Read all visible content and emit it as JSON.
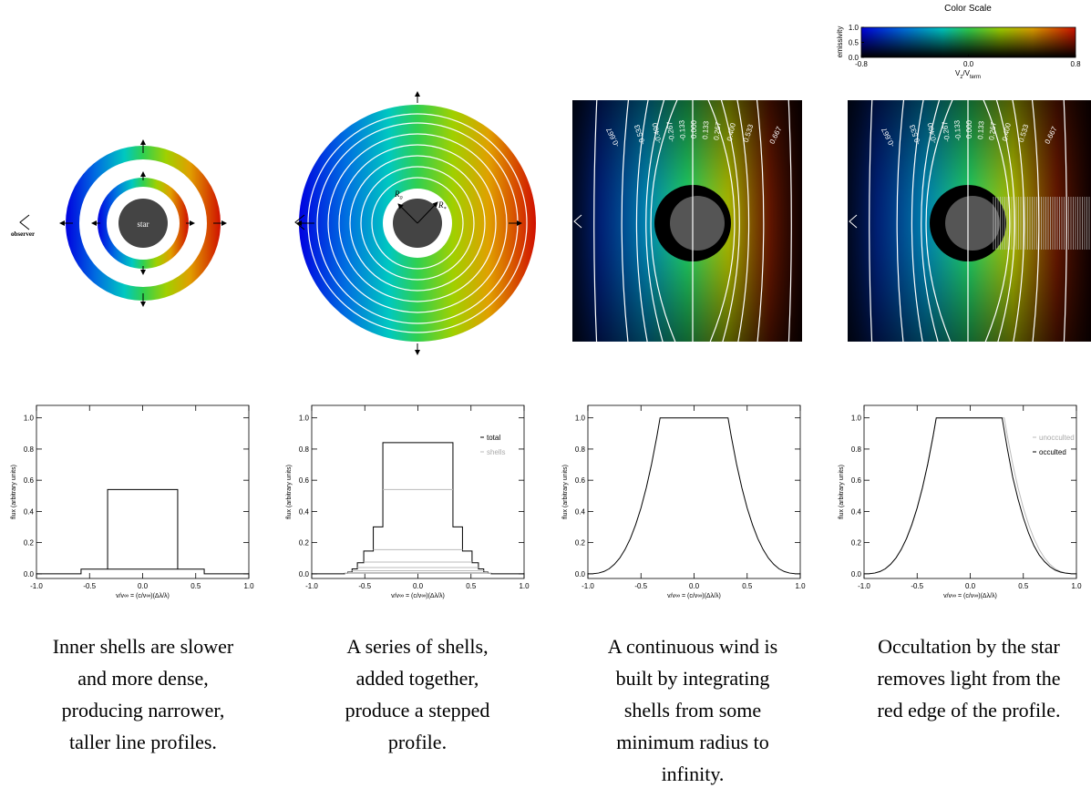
{
  "color_scale": {
    "title": "Color Scale",
    "ylabel": "emissivity",
    "xlabel_parts": [
      "V",
      "z",
      "/V",
      "term"
    ],
    "xlim": [
      -0.8,
      0.8
    ],
    "ylim": [
      0,
      1
    ],
    "xticks": [
      -0.8,
      {
        "value": 0,
        "label": "0.0"
      },
      0.8
    ],
    "yticks": [
      {
        "value": 0,
        "label": "0.0"
      },
      0.5,
      {
        "value": 1,
        "label": "1.0"
      }
    ]
  },
  "diagrams": {
    "star": "star",
    "observer": "observer",
    "r0": [
      "R",
      "0"
    ],
    "rstar": [
      "R",
      "*"
    ],
    "contour_labels": [
      "-0.667",
      "-0.533",
      "-0.400",
      "-0.267",
      "-0.133",
      "0.000",
      "0.133",
      "0.267",
      "0.400",
      "0.533",
      "0.667"
    ]
  },
  "chart_data": [
    {
      "type": "line",
      "xlabel": "v/v∞ = (c/v∞)(Δλ/λ)",
      "ylabel": "flux (arbitrary units)",
      "xlim": [
        -1,
        1
      ],
      "ylim": [
        -0.03,
        1.08
      ],
      "xticks": [
        {
          "value": -1,
          "label": "-1.0"
        },
        -0.5,
        {
          "value": 0,
          "label": "0.0"
        },
        0.5,
        {
          "value": 1,
          "label": "1.0"
        }
      ],
      "yticks": [
        {
          "value": 0,
          "label": "0.0"
        },
        0.2,
        0.4,
        0.6,
        0.8,
        {
          "value": 1,
          "label": "1.0"
        }
      ],
      "series": [
        {
          "color": "#000000",
          "x": [
            -1,
            -0.58,
            -0.58,
            0.58,
            0.58,
            1
          ],
          "values": [
            0,
            0,
            0.03,
            0.03,
            0,
            0
          ]
        },
        {
          "color": "#000000",
          "x": [
            -0.33,
            -0.33,
            0.33,
            0.33
          ],
          "values": [
            0.03,
            0.54,
            0.54,
            0.03
          ]
        }
      ]
    },
    {
      "type": "line",
      "xlabel": "v/v∞ = (c/v∞)(Δλ/λ)",
      "ylabel": "flux (arbitrary units)",
      "xlim": [
        -1,
        1
      ],
      "ylim": [
        -0.03,
        1.08
      ],
      "xticks": [
        {
          "value": -1,
          "label": "-1.0"
        },
        -0.5,
        {
          "value": 0,
          "label": "0.0"
        },
        0.5,
        {
          "value": 1,
          "label": "1.0"
        }
      ],
      "yticks": [
        {
          "value": 0,
          "label": "0.0"
        },
        0.2,
        0.4,
        0.6,
        0.8,
        {
          "value": 1,
          "label": "1.0"
        }
      ],
      "legend": "upper right",
      "series": [
        {
          "name": "total",
          "color": "#000000",
          "x": [
            -1,
            -0.69,
            -0.69,
            -0.66,
            -0.66,
            -0.62,
            -0.62,
            -0.57,
            -0.57,
            -0.51,
            -0.51,
            -0.42,
            -0.42,
            -0.33,
            -0.33,
            0.33,
            0.33,
            0.42,
            0.42,
            0.51,
            0.51,
            0.57,
            0.57,
            0.62,
            0.62,
            0.66,
            0.66,
            0.69,
            0.69,
            1
          ],
          "values": [
            0,
            0,
            0.003,
            0.003,
            0.011,
            0.011,
            0.031,
            0.031,
            0.071,
            0.071,
            0.146,
            0.146,
            0.301,
            0.301,
            0.841,
            0.841,
            0.301,
            0.301,
            0.146,
            0.146,
            0.071,
            0.071,
            0.031,
            0.031,
            0.011,
            0.011,
            0.003,
            0.003,
            0,
            0
          ]
        },
        {
          "name": "shells",
          "color": "#bbbbbb",
          "x": [
            -0.33,
            0.33,
            null,
            -0.42,
            0.42,
            null,
            -0.51,
            0.51,
            null,
            -0.57,
            0.57,
            null,
            -0.62,
            0.62,
            null,
            -0.66,
            0.66,
            null,
            -0.69,
            0.69
          ],
          "values": [
            0.54,
            0.54,
            null,
            0.155,
            0.155,
            null,
            0.075,
            0.075,
            null,
            0.04,
            0.04,
            null,
            0.02,
            0.02,
            null,
            0.008,
            0.008,
            null,
            0.003,
            0.003
          ]
        }
      ]
    },
    {
      "type": "line",
      "xlabel": "v/v∞ = (c/v∞)(Δλ/λ)",
      "ylabel": "flux (arbitrary units)",
      "xlim": [
        -1,
        1
      ],
      "ylim": [
        -0.03,
        1.08
      ],
      "xticks": [
        {
          "value": -1,
          "label": "-1.0"
        },
        -0.5,
        {
          "value": 0,
          "label": "0.0"
        },
        0.5,
        {
          "value": 1,
          "label": "1.0"
        }
      ],
      "yticks": [
        {
          "value": 0,
          "label": "0.0"
        },
        0.2,
        0.4,
        0.6,
        0.8,
        {
          "value": 1,
          "label": "1.0"
        }
      ],
      "series": [
        {
          "color": "#000000",
          "x": [
            -1,
            -0.95,
            -0.9,
            -0.85,
            -0.8,
            -0.75,
            -0.7,
            -0.65,
            -0.6,
            -0.55,
            -0.5,
            -0.45,
            -0.4,
            -0.35,
            -0.32,
            0.32,
            0.35,
            0.4,
            0.45,
            0.5,
            0.55,
            0.6,
            0.65,
            0.7,
            0.75,
            0.8,
            0.85,
            0.9,
            0.95,
            1
          ],
          "values": [
            0,
            0.0007,
            0.0047,
            0.0145,
            0.032,
            0.061,
            0.101,
            0.156,
            0.226,
            0.315,
            0.422,
            0.552,
            0.704,
            0.882,
            1,
            1,
            0.882,
            0.704,
            0.552,
            0.422,
            0.315,
            0.226,
            0.156,
            0.101,
            0.061,
            0.032,
            0.0145,
            0.0047,
            0.0007,
            0
          ]
        }
      ]
    },
    {
      "type": "line",
      "xlabel": "v/v∞ = (c/v∞)(Δλ/λ)",
      "ylabel": "flux (arbitrary units)",
      "xlim": [
        -1,
        1
      ],
      "ylim": [
        -0.03,
        1.08
      ],
      "xticks": [
        {
          "value": -1,
          "label": "-1.0"
        },
        -0.5,
        {
          "value": 0,
          "label": "0.0"
        },
        0.5,
        {
          "value": 1,
          "label": "1.0"
        }
      ],
      "yticks": [
        {
          "value": 0,
          "label": "0.0"
        },
        0.2,
        0.4,
        0.6,
        0.8,
        {
          "value": 1,
          "label": "1.0"
        }
      ],
      "legend": "upper right",
      "series": [
        {
          "name": "unocculted",
          "color": "#bbbbbb",
          "x": [
            -1,
            -0.95,
            -0.9,
            -0.85,
            -0.8,
            -0.75,
            -0.7,
            -0.65,
            -0.6,
            -0.55,
            -0.5,
            -0.45,
            -0.4,
            -0.35,
            -0.32,
            0.32,
            0.35,
            0.4,
            0.45,
            0.5,
            0.55,
            0.6,
            0.65,
            0.7,
            0.75,
            0.8,
            0.85,
            0.9,
            0.95,
            1
          ],
          "values": [
            0,
            0.0007,
            0.0047,
            0.0145,
            0.032,
            0.061,
            0.101,
            0.156,
            0.226,
            0.315,
            0.422,
            0.552,
            0.704,
            0.882,
            1,
            1,
            0.882,
            0.704,
            0.552,
            0.422,
            0.315,
            0.226,
            0.156,
            0.101,
            0.061,
            0.032,
            0.0145,
            0.0047,
            0.0007,
            0
          ]
        },
        {
          "name": "occulted",
          "color": "#000000",
          "x": [
            -1,
            -0.95,
            -0.9,
            -0.85,
            -0.8,
            -0.75,
            -0.7,
            -0.65,
            -0.6,
            -0.55,
            -0.5,
            -0.45,
            -0.4,
            -0.35,
            -0.32,
            0.3,
            0.35,
            0.4,
            0.45,
            0.5,
            0.55,
            0.6,
            0.65,
            0.7,
            0.75,
            0.8,
            0.85,
            0.9,
            0.95,
            1
          ],
          "values": [
            0,
            0.0007,
            0.0047,
            0.0145,
            0.032,
            0.061,
            0.101,
            0.156,
            0.226,
            0.315,
            0.422,
            0.552,
            0.704,
            0.882,
            1,
            1,
            0.8,
            0.62,
            0.48,
            0.36,
            0.26,
            0.18,
            0.12,
            0.078,
            0.046,
            0.024,
            0.011,
            0.004,
            0.0006,
            0
          ]
        }
      ]
    }
  ],
  "captions": [
    [
      "Inner shells are slower",
      "and more dense,",
      "producing narrower,",
      "taller line profiles."
    ],
    [
      "A series of shells,",
      "added together,",
      "produce a stepped",
      "profile."
    ],
    [
      "A continuous wind is",
      "built by integrating",
      "shells from some",
      "minimum radius to",
      "infinity."
    ],
    [
      "Occultation by the star",
      "removes light from the",
      "red edge of the profile."
    ]
  ]
}
